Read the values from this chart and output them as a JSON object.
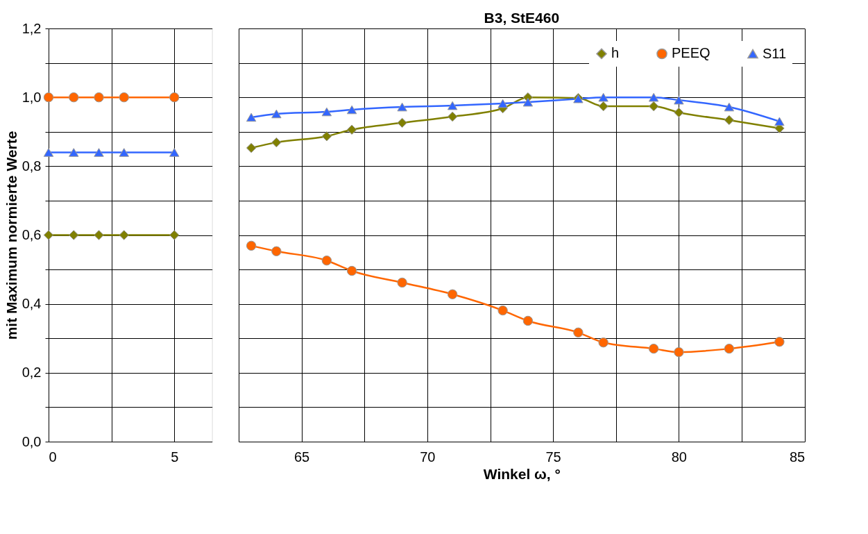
{
  "chart_data": [
    {
      "type": "line",
      "ylabel": "mit Maximum normierte Werte",
      "x": [
        0,
        1,
        2,
        3,
        5
      ],
      "xlim": [
        0,
        6.5
      ],
      "xticks": [
        0,
        {
          "value": 2.5,
          "label": null
        },
        5
      ],
      "ylim": [
        0,
        1.2
      ],
      "yticks": [
        {
          "value": 0,
          "label": "0,0"
        },
        {
          "value": 0.1,
          "label": null
        },
        {
          "value": 0.2,
          "label": "0,2"
        },
        {
          "value": 0.3,
          "label": null
        },
        {
          "value": 0.4,
          "label": "0,4"
        },
        {
          "value": 0.5,
          "label": null
        },
        {
          "value": 0.6,
          "label": "0,6"
        },
        {
          "value": 0.7,
          "label": null
        },
        {
          "value": 0.8,
          "label": "0,8"
        },
        {
          "value": 0.9,
          "label": null
        },
        {
          "value": 1.0,
          "label": "1,0"
        },
        {
          "value": 1.1,
          "label": null
        },
        {
          "value": 1.2,
          "label": "1,2"
        }
      ],
      "grid": true,
      "legend": false,
      "series": [
        {
          "color": "#808000",
          "marker": "diamond",
          "values": [
            0.6,
            0.6,
            0.6,
            0.6,
            0.6
          ]
        },
        {
          "color": "#ff6600",
          "marker": "circle",
          "values": [
            1.0,
            1.0,
            1.0,
            1.0,
            1.0
          ]
        },
        {
          "color": "#3366ff",
          "marker": "triangle",
          "values": [
            0.84,
            0.84,
            0.84,
            0.84,
            0.84
          ]
        }
      ]
    },
    {
      "type": "line",
      "title": "B3, StE460",
      "xlabel": "Winkel ω, °",
      "x": [
        63,
        64,
        66,
        67,
        69,
        71,
        73,
        74,
        76,
        77,
        79,
        80,
        82,
        84
      ],
      "xlim": [
        62.5,
        85
      ],
      "xticks": [
        {
          "value": 62.5,
          "label": null
        },
        65,
        {
          "value": 67.5,
          "label": null
        },
        70,
        {
          "value": 72.5,
          "label": null
        },
        75,
        {
          "value": 77.5,
          "label": null
        },
        80,
        {
          "value": 82.5,
          "label": null
        },
        85
      ],
      "ylim": [
        0,
        1.2
      ],
      "yticks": [
        0,
        0.1,
        0.2,
        0.3,
        0.4,
        0.5,
        0.6,
        0.7,
        0.8,
        0.9,
        1.0,
        1.1,
        1.2
      ],
      "tick_labels": "x",
      "grid": true,
      "legend": "top right",
      "series": [
        {
          "name": "h",
          "color": "#808000",
          "marker": "diamond",
          "values": [
            0.853,
            0.869,
            0.887,
            0.906,
            0.926,
            0.944,
            0.968,
            1.0,
            0.998,
            0.974,
            0.974,
            0.956,
            0.934,
            0.91
          ]
        },
        {
          "name": "PEEQ",
          "color": "#ff6600",
          "marker": "circle",
          "values": [
            0.569,
            0.553,
            0.526,
            0.496,
            0.462,
            0.428,
            0.381,
            0.351,
            0.317,
            0.288,
            0.27,
            0.26,
            0.27,
            0.29
          ]
        },
        {
          "name": "S11",
          "color": "#3366ff",
          "marker": "triangle",
          "values": [
            0.942,
            0.952,
            0.958,
            0.964,
            0.972,
            0.976,
            0.982,
            0.986,
            0.996,
            1.0,
            1.0,
            0.992,
            0.972,
            0.93
          ]
        }
      ]
    }
  ]
}
